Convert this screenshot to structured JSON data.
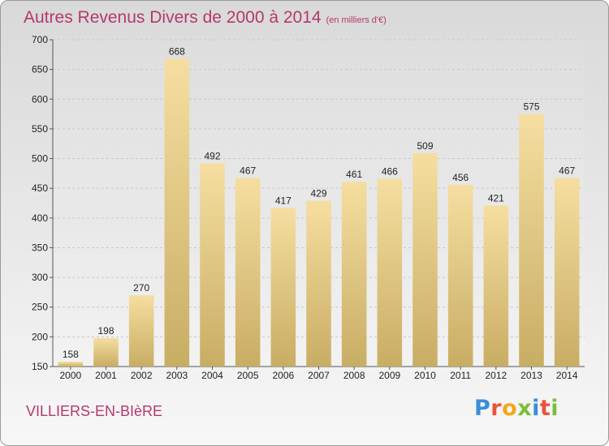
{
  "chart_data": {
    "type": "bar",
    "title": "Autres Revenus Divers de 2000 à 2014",
    "subtitle": "(en milliers d'€)",
    "categories": [
      "2000",
      "2001",
      "2002",
      "2003",
      "2004",
      "2005",
      "2006",
      "2007",
      "2008",
      "2009",
      "2010",
      "2011",
      "2012",
      "2013",
      "2014"
    ],
    "values": [
      158,
      198,
      270,
      668,
      492,
      467,
      417,
      429,
      461,
      466,
      509,
      456,
      421,
      575,
      467
    ],
    "ylim": [
      150,
      700
    ],
    "yticks": [
      150,
      200,
      250,
      300,
      350,
      400,
      450,
      500,
      550,
      600,
      650,
      700
    ],
    "grid": true,
    "bar_color_top": "#f5dea0",
    "bar_color_bottom": "#c8ad64"
  },
  "footer": {
    "commune": "VILLIERS-EN-BIèRE",
    "logo_text": "Proxiti",
    "logo_colors": [
      "#3a8fd6",
      "#e8543a",
      "#f2a81d",
      "#7abf3a",
      "#3a8fd6",
      "#e8543a",
      "#7abf3a"
    ]
  },
  "colors": {
    "title": "#b5386d",
    "grid": "#c9c9c9",
    "axis_text": "#222222"
  }
}
